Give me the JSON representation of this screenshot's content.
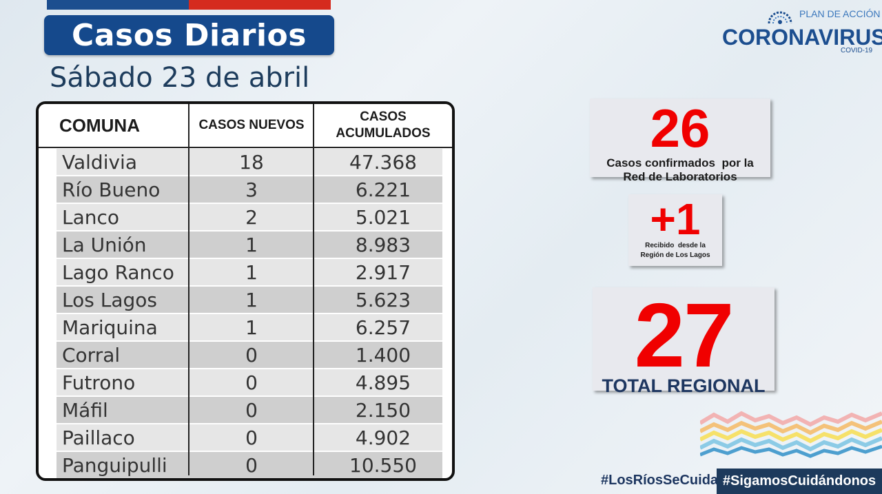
{
  "header": {
    "title": "Casos Diarios",
    "date": "Sábado 23 de abril"
  },
  "logo": {
    "small": "PLAN DE ACCIÓN",
    "main": "CORONAVIRUS",
    "sub": "COVID-19"
  },
  "table": {
    "headers": {
      "comuna": "COMUNA",
      "nuevos": "CASOS NUEVOS",
      "acum_line1": "CASOS",
      "acum_line2": "ACUMULADOS"
    },
    "rows": [
      {
        "comuna": "Valdivia",
        "nuevos": "18",
        "acumulados": "47.368"
      },
      {
        "comuna": "Río Bueno",
        "nuevos": "3",
        "acumulados": "6.221"
      },
      {
        "comuna": "Lanco",
        "nuevos": "2",
        "acumulados": "5.021"
      },
      {
        "comuna": "La Unión",
        "nuevos": "1",
        "acumulados": "8.983"
      },
      {
        "comuna": "Lago Ranco",
        "nuevos": "1",
        "acumulados": "2.917"
      },
      {
        "comuna": "Los Lagos",
        "nuevos": "1",
        "acumulados": "5.623"
      },
      {
        "comuna": "Mariquina",
        "nuevos": "1",
        "acumulados": "6.257"
      },
      {
        "comuna": "Corral",
        "nuevos": "0",
        "acumulados": "1.400"
      },
      {
        "comuna": "Futrono",
        "nuevos": "0",
        "acumulados": "4.895"
      },
      {
        "comuna": "Máfil",
        "nuevos": "0",
        "acumulados": "2.150"
      },
      {
        "comuna": "Paillaco",
        "nuevos": "0",
        "acumulados": "4.902"
      },
      {
        "comuna": "Panguipulli",
        "nuevos": "0",
        "acumulados": "10.550"
      }
    ]
  },
  "cards": {
    "lab": {
      "value": "26",
      "label_line1": "Casos confirmados  por la",
      "label_line2": "Red de Laboratorios"
    },
    "received": {
      "value": "+1",
      "label_line1": "Recibido  desde la",
      "label_line2": "Región de Los Lagos"
    },
    "total": {
      "value": "27",
      "label": "TOTAL REGIONAL"
    }
  },
  "footer": {
    "hashtag1": "#LosRíosSeCuida",
    "hashtag2": "#SigamosCuidándonos"
  },
  "colors": {
    "brand_blue": "#15498c",
    "brand_red": "#d52b1e",
    "number_red": "#f00000",
    "row_light": "#e6e6e6",
    "row_dark": "#cfcfcf"
  }
}
